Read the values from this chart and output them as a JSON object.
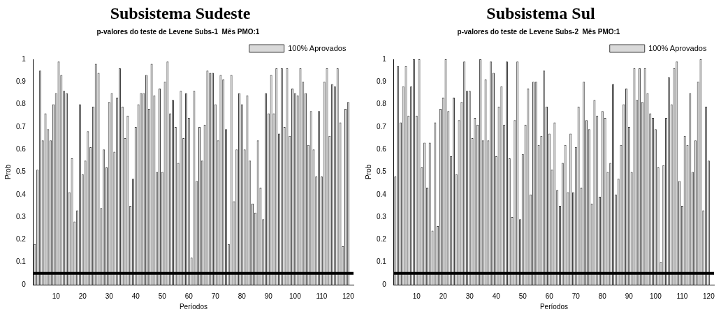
{
  "chart_data": [
    {
      "type": "bar",
      "title": "Subsistema Sudeste",
      "subtitle": "p-valores do teste de Levene Subs-1  Mês PMO:1",
      "xlabel": "Períodos",
      "ylabel": "Prob",
      "x": [
        2,
        3,
        4,
        5,
        6,
        7,
        8,
        9,
        10,
        11,
        12,
        13,
        14,
        15,
        16,
        17,
        18,
        19,
        20,
        21,
        22,
        23,
        24,
        25,
        26,
        27,
        28,
        29,
        30,
        31,
        32,
        33,
        34,
        35,
        36,
        37,
        38,
        39,
        40,
        41,
        42,
        43,
        44,
        45,
        46,
        47,
        48,
        49,
        50,
        51,
        52,
        53,
        54,
        55,
        56,
        57,
        58,
        59,
        60,
        61,
        62,
        63,
        64,
        65,
        66,
        67,
        68,
        69,
        70,
        71,
        72,
        73,
        74,
        75,
        76,
        77,
        78,
        79,
        80,
        81,
        82,
        83,
        84,
        85,
        86,
        87,
        88,
        89,
        90,
        91,
        92,
        93,
        94,
        95,
        96,
        97,
        98,
        99,
        100,
        101,
        102,
        103,
        104,
        105,
        106,
        107,
        108,
        109,
        110,
        111,
        112,
        113,
        114,
        115,
        116,
        117,
        118,
        119,
        120
      ],
      "series": [
        {
          "name": "100% Aprovados",
          "color": "#d9d9d9",
          "values": [
            0.18,
            0.51,
            0.95,
            0.64,
            0.76,
            0.69,
            0.64,
            0.8,
            0.85,
            0.99,
            0.93,
            0.86,
            0.85,
            0.41,
            0.56,
            0.28,
            0.33,
            0.8,
            0.49,
            0.55,
            0.68,
            0.61,
            0.79,
            0.98,
            0.94,
            0.34,
            0.6,
            0.52,
            0.81,
            0.85,
            0.59,
            0.83,
            0.96,
            0.79,
            0.65,
            0.75,
            0.35,
            0.47,
            0.7,
            0.8,
            0.85,
            0.85,
            0.93,
            0.78,
            0.98,
            0.84,
            0.5,
            0.87,
            0.5,
            0.9,
            0.99,
            0.76,
            0.82,
            0.7,
            0.54,
            0.86,
            0.65,
            0.85,
            0.74,
            0.12,
            0.86,
            0.46,
            0.7,
            0.55,
            0.71,
            0.95,
            0.94,
            0.94,
            0.8,
            0.64,
            0.93,
            0.91,
            0.69,
            0.18,
            0.93,
            0.37,
            0.6,
            0.85,
            0.8,
            0.6,
            0.84,
            0.55,
            0.36,
            0.32,
            0.64,
            0.43,
            0.29,
            0.85,
            0.76,
            0.93,
            0.76,
            0.96,
            0.67,
            0.96,
            0.7,
            0.96,
            0.66,
            0.87,
            0.85,
            0.84,
            0.96,
            0.9,
            0.85,
            0.62,
            0.77,
            0.6,
            0.48,
            0.77,
            0.48,
            0.9,
            0.96,
            0.66,
            0.89,
            0.88,
            0.96,
            0.72,
            0.17,
            0.78,
            0.81
          ]
        }
      ],
      "xlim": [
        1.5,
        122
      ],
      "xticks": [
        10,
        20,
        30,
        40,
        50,
        60,
        70,
        80,
        90,
        100,
        110,
        120
      ],
      "ylim": [
        0,
        1
      ],
      "yticks": [
        0,
        0.1,
        0.2,
        0.3,
        0.4,
        0.5,
        0.6,
        0.7,
        0.8,
        0.9,
        1
      ],
      "ref_lines": [
        {
          "axis": "y",
          "value": 0.05,
          "color": "#000000"
        }
      ],
      "legend": "top right",
      "grid": false
    },
    {
      "type": "bar",
      "title": "Subsistema Sul",
      "subtitle": "p-valores do teste de Levene Subs-2  Mês PMO:1",
      "xlabel": "Períodos",
      "ylabel": "Prob",
      "x": [
        2,
        3,
        4,
        5,
        6,
        7,
        8,
        9,
        10,
        11,
        12,
        13,
        14,
        15,
        16,
        17,
        18,
        19,
        20,
        21,
        22,
        23,
        24,
        25,
        26,
        27,
        28,
        29,
        30,
        31,
        32,
        33,
        34,
        35,
        36,
        37,
        38,
        39,
        40,
        41,
        42,
        43,
        44,
        45,
        46,
        47,
        48,
        49,
        50,
        51,
        52,
        53,
        54,
        55,
        56,
        57,
        58,
        59,
        60,
        61,
        62,
        63,
        64,
        65,
        66,
        67,
        68,
        69,
        70,
        71,
        72,
        73,
        74,
        75,
        76,
        77,
        78,
        79,
        80,
        81,
        82,
        83,
        84,
        85,
        86,
        87,
        88,
        89,
        90,
        91,
        92,
        93,
        94,
        95,
        96,
        97,
        98,
        99,
        100,
        101,
        102,
        103,
        104,
        105,
        106,
        107,
        108,
        109,
        110,
        111,
        112,
        113,
        114,
        115,
        116,
        117,
        118,
        119,
        120
      ],
      "series": [
        {
          "name": "100% Aprovados",
          "color": "#d9d9d9",
          "values": [
            0.48,
            0.97,
            0.72,
            0.88,
            0.97,
            0.75,
            0.88,
            1.0,
            0.75,
            1.0,
            0.52,
            0.63,
            0.43,
            0.63,
            0.24,
            0.72,
            0.26,
            0.78,
            0.83,
            1.0,
            0.77,
            0.57,
            0.83,
            0.49,
            0.73,
            0.81,
            0.99,
            0.86,
            0.86,
            0.65,
            0.74,
            0.71,
            1.0,
            0.64,
            0.91,
            0.64,
            0.99,
            0.94,
            0.57,
            0.79,
            0.88,
            0.71,
            0.99,
            0.56,
            0.3,
            0.73,
            0.99,
            0.29,
            0.58,
            0.71,
            0.87,
            0.4,
            0.9,
            0.9,
            0.62,
            0.66,
            0.95,
            0.79,
            0.67,
            0.51,
            0.72,
            0.42,
            0.35,
            0.54,
            0.62,
            0.41,
            0.67,
            0.41,
            0.61,
            0.79,
            0.43,
            0.9,
            0.73,
            0.69,
            0.36,
            0.82,
            0.75,
            0.39,
            0.77,
            0.74,
            0.5,
            0.54,
            0.89,
            0.4,
            0.47,
            0.62,
            0.8,
            0.87,
            0.7,
            0.5,
            0.96,
            0.82,
            0.96,
            0.81,
            0.96,
            0.85,
            0.76,
            0.74,
            0.69,
            0.52,
            0.1,
            0.53,
            0.74,
            0.92,
            0.8,
            0.96,
            0.99,
            0.46,
            0.35,
            0.66,
            0.62,
            0.85,
            0.5,
            0.64,
            0.9,
            1.0,
            0.33,
            0.79,
            0.55
          ]
        }
      ],
      "xlim": [
        1.5,
        122
      ],
      "xticks": [
        10,
        20,
        30,
        40,
        50,
        60,
        70,
        80,
        90,
        100,
        110,
        120
      ],
      "ylim": [
        0,
        1
      ],
      "yticks": [
        0,
        0.1,
        0.2,
        0.3,
        0.4,
        0.5,
        0.6,
        0.7,
        0.8,
        0.9,
        1
      ],
      "ref_lines": [
        {
          "axis": "y",
          "value": 0.05,
          "color": "#000000"
        }
      ],
      "legend": "top right",
      "grid": false
    }
  ]
}
